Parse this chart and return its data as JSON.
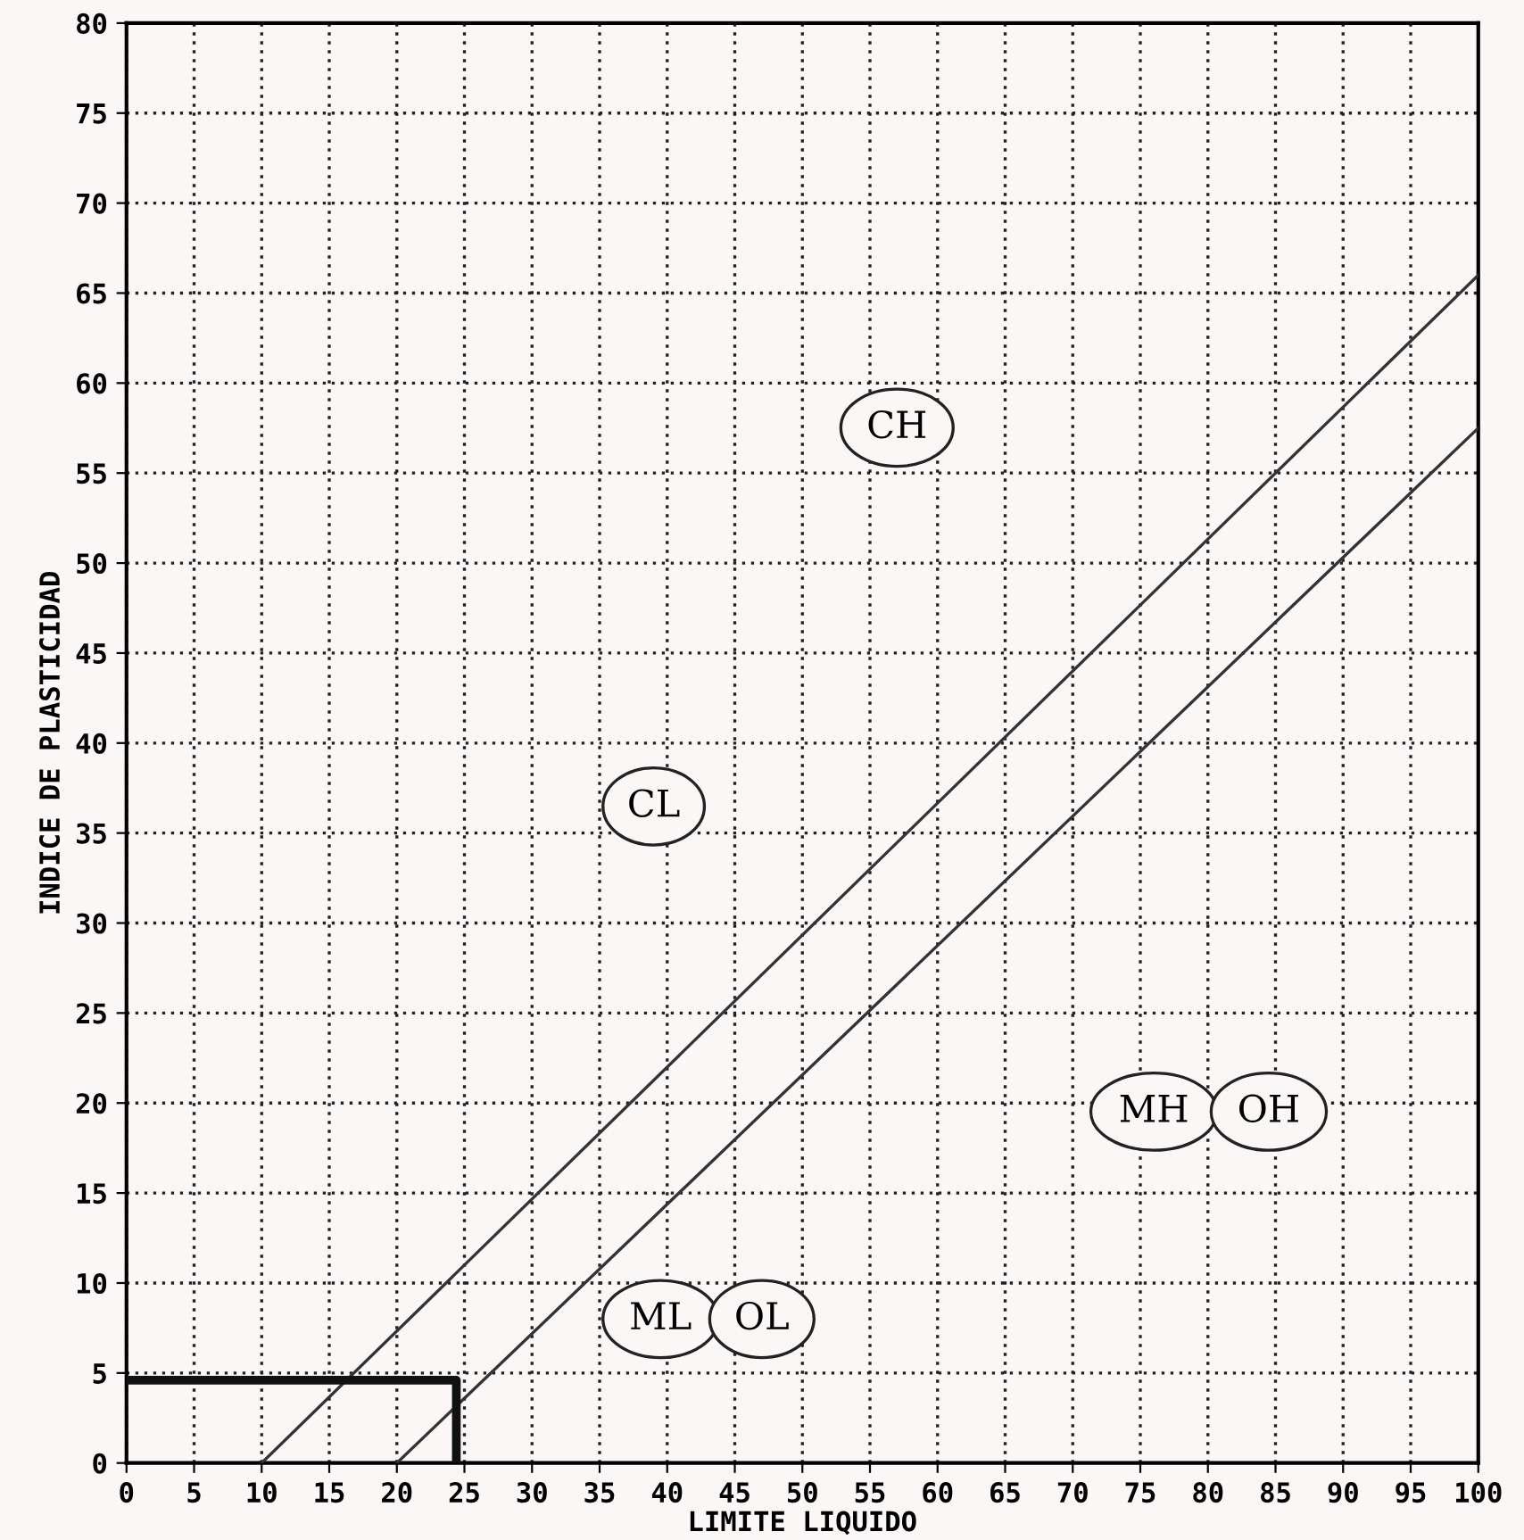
{
  "chart_data": {
    "type": "line",
    "xlabel": "LIMITE LIQUIDO",
    "ylabel": "INDICE DE PLASTICIDAD",
    "series": [
      {
        "x": [
          10,
          100
        ],
        "values": [
          0,
          66
        ],
        "color": "#333333"
      },
      {
        "x": [
          20,
          100
        ],
        "values": [
          0,
          57.5
        ],
        "color": "#333333"
      },
      {
        "x": [
          0,
          24.4,
          24.4
        ],
        "values": [
          4.6,
          4.6,
          0
        ],
        "color": "#111111"
      }
    ],
    "xlim": [
      0,
      100
    ],
    "ylim": [
      0,
      80
    ],
    "xticks": [
      0,
      5,
      10,
      15,
      20,
      25,
      30,
      35,
      40,
      45,
      50,
      55,
      60,
      65,
      70,
      75,
      80,
      85,
      90,
      95,
      100
    ],
    "yticks": [
      0,
      5,
      10,
      15,
      20,
      25,
      30,
      35,
      40,
      45,
      50,
      55,
      60,
      65,
      70,
      75,
      80
    ],
    "grid": true,
    "marker": "none",
    "line_style": "solid",
    "annotations": [
      "CH",
      "CL",
      "ML",
      "OL",
      "MH",
      "OH"
    ]
  }
}
